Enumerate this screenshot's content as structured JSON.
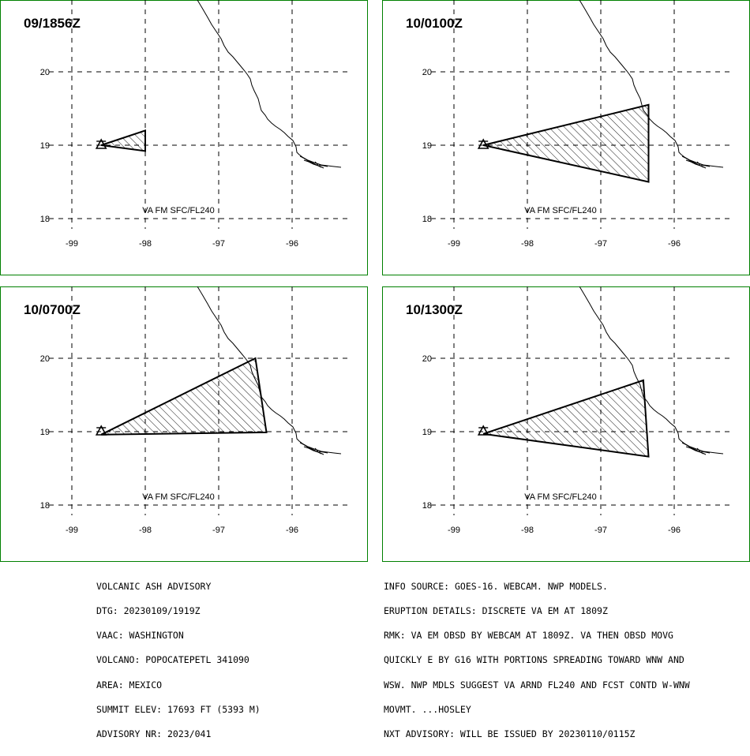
{
  "panels": [
    {
      "time_label": "09/1856Z",
      "layer_label": "VA FM SFC/FL240",
      "ash_polygon": [
        [
          -98.6,
          19.0
        ],
        [
          -98.0,
          19.2
        ],
        [
          -98.0,
          18.92
        ]
      ]
    },
    {
      "time_label": "10/0100Z",
      "layer_label": "VA FM SFC/FL240",
      "ash_polygon": [
        [
          -98.6,
          19.0
        ],
        [
          -96.35,
          19.55
        ],
        [
          -96.35,
          18.5
        ]
      ]
    },
    {
      "time_label": "10/0700Z",
      "layer_label": "VA FM SFC/FL240",
      "ash_polygon": [
        [
          -98.6,
          18.96
        ],
        [
          -96.5,
          20.0
        ],
        [
          -96.35,
          18.99
        ]
      ]
    },
    {
      "time_label": "10/1300Z",
      "layer_label": "VA FM SFC/FL240",
      "ash_polygon": [
        [
          -98.6,
          18.97
        ],
        [
          -96.42,
          19.7
        ],
        [
          -96.35,
          18.66
        ]
      ]
    }
  ],
  "volcano": {
    "name": "POPOCATEPETL",
    "lon": -98.6,
    "lat": 19.0
  },
  "axes": {
    "x_ticks": [
      -99,
      -98,
      -97,
      -96
    ],
    "x_tick_labels": [
      "-99",
      "-98",
      "-97",
      "-96"
    ],
    "y_ticks": [
      20,
      19,
      18
    ],
    "y_tick_labels": [
      "20",
      "19",
      "18"
    ],
    "lon_range": [
      -99.9,
      -95.3
    ],
    "lat_range": [
      17.5,
      21.0
    ]
  },
  "map_colors": {
    "frame": "#008000",
    "line": "#000000",
    "hatch": "#000000",
    "background": "#ffffff"
  },
  "advisory_left": [
    "VOLCANIC ASH ADVISORY",
    "DTG: 20230109/1919Z",
    "VAAC: WASHINGTON",
    "VOLCANO: POPOCATEPETL 341090",
    "AREA: MEXICO",
    "SUMMIT ELEV: 17693 FT (5393 M)",
    "ADVISORY NR: 2023/041"
  ],
  "advisory_right": [
    "INFO SOURCE: GOES-16. WEBCAM. NWP MODELS.",
    "ERUPTION DETAILS: DISCRETE VA EM AT 1809Z",
    "RMK: VA EM OBSD BY WEBCAM AT 1809Z. VA THEN OBSD MOVG",
    "QUICKLY E BY G16 WITH PORTIONS SPREADING TOWARD WNW AND",
    "WSW. NWP MDLS SUGGEST VA ARND FL240 AND FCST CONTD W-WNW",
    "MOVMT. ...HOSLEY",
    "NXT ADVISORY: WILL BE ISSUED BY 20230110/0115Z"
  ]
}
